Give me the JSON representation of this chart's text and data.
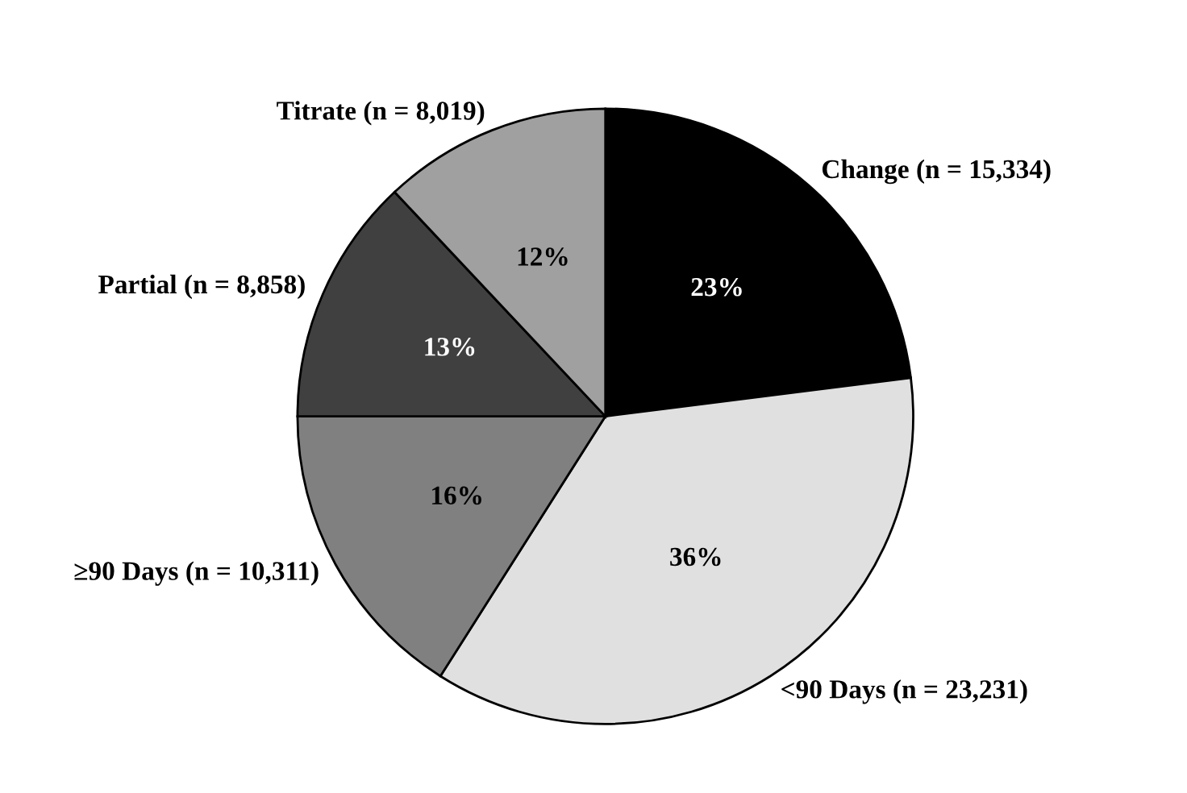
{
  "chart_data": {
    "type": "pie",
    "categories": [
      "Change (n = 15,334)",
      "<90 Days (n = 23,231)",
      "≥90 Days (n = 10,311)",
      "Partial (n = 8,858)",
      "Titrate (n = 8,019)"
    ],
    "values": [
      23,
      36,
      16,
      13,
      12
    ],
    "colors": [
      "#000000",
      "#e0e0e0",
      "#808080",
      "#404040",
      "#a0a0a0"
    ],
    "value_labels": [
      "23%",
      "36%",
      "16%",
      "13%",
      "12%"
    ]
  }
}
